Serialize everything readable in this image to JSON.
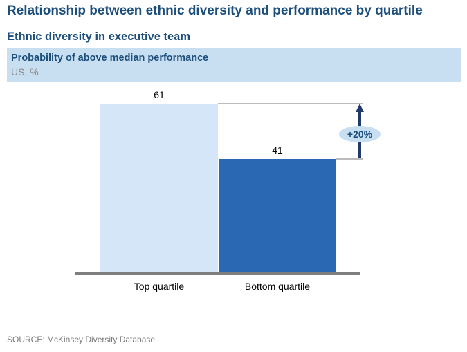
{
  "title": "Relationship between ethnic diversity and performance by quartile",
  "subtitle": "Ethnic diversity in executive team",
  "header": {
    "line1": "Probability of above median performance",
    "line2": "US, %"
  },
  "chart_data": {
    "type": "bar",
    "categories": [
      "Top quartile",
      "Bottom quartile"
    ],
    "values": [
      61,
      41
    ],
    "ylim": [
      0,
      61
    ],
    "bar_colors": [
      "#d4e6f7",
      "#2b68b4"
    ],
    "annotation": {
      "label": "+20%",
      "from": 41,
      "to": 61
    },
    "grid": false,
    "legend": "none"
  },
  "colors": {
    "title": "#1d4f7c",
    "header_band": "#c8dff2",
    "baseline": "#7f7f7f",
    "arrow": "#1f3a6b",
    "annotation_bubble": "#c8dff2"
  },
  "source": "SOURCE: McKinsey Diversity Database"
}
